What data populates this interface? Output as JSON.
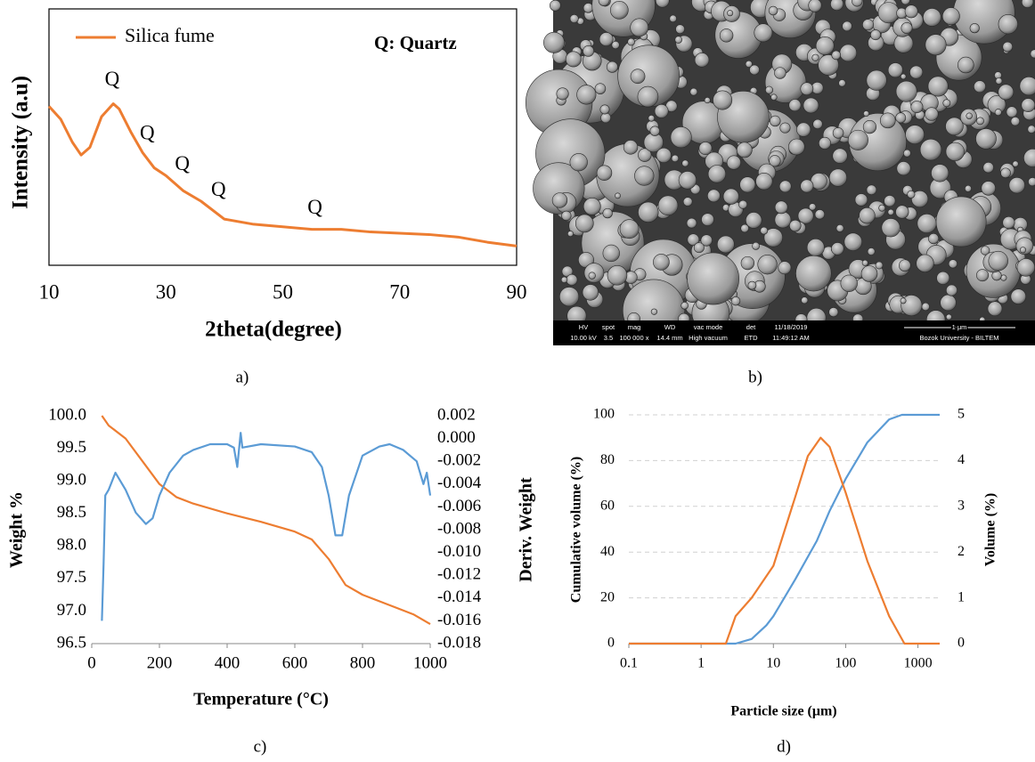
{
  "chart_data": [
    {
      "type": "line",
      "caption": "a)",
      "xlabel": "2theta(degree)",
      "ylabel": "Intensity (a.u)",
      "xlim": [
        10,
        90
      ],
      "xticks": [
        10,
        30,
        50,
        70,
        90
      ],
      "ylim": [
        0,
        100
      ],
      "grid": false,
      "legend": "top-left",
      "note": "Q: Quartz",
      "peak_labels": [
        "Q",
        "Q",
        "Q",
        "Q",
        "Q"
      ],
      "series": [
        {
          "name": "Silica fume",
          "color": "#ed7d31",
          "x": [
            10,
            12,
            14,
            15.5,
            17,
            19,
            21,
            22,
            24,
            26,
            28,
            30,
            33,
            36,
            40,
            45,
            50,
            55,
            60,
            65,
            70,
            75,
            80,
            85,
            90
          ],
          "values": [
            62,
            57,
            48,
            43,
            46,
            58,
            63,
            61,
            52,
            44,
            38,
            35,
            29,
            25,
            18,
            16,
            15,
            14,
            14,
            13,
            12.5,
            12,
            11,
            9,
            7.5
          ]
        }
      ]
    },
    {
      "type": "line",
      "caption": "c)",
      "xlabel": "Temperature (°C)",
      "ylabel": "Weight %",
      "y2label": "Deriv. Weight",
      "xlim": [
        0,
        1000
      ],
      "xticks": [
        0,
        200,
        400,
        600,
        800,
        1000
      ],
      "ylim": [
        96.5,
        100
      ],
      "yticks": [
        96.5,
        {
          "value": 97,
          "label": "97.0"
        },
        97.5,
        {
          "value": 98,
          "label": "98.0"
        },
        98.5,
        {
          "value": 99,
          "label": "99.0"
        },
        99.5,
        {
          "value": 100,
          "label": "100.0"
        }
      ],
      "y2lim": [
        -0.018,
        0.002
      ],
      "y2ticks": [
        -0.018,
        -0.016,
        -0.014,
        -0.012,
        {
          "value": -0.01,
          "label": "-0.010"
        },
        -0.008,
        -0.006,
        -0.004,
        -0.002,
        {
          "value": 0,
          "label": "0.000"
        },
        0.002
      ],
      "grid": false,
      "series": [
        {
          "color": "#ed7d31",
          "x": [
            30,
            50,
            100,
            150,
            200,
            250,
            300,
            400,
            500,
            600,
            650,
            700,
            750,
            800,
            900,
            950,
            1000
          ],
          "values": [
            100,
            99.85,
            99.65,
            99.3,
            98.95,
            98.75,
            98.65,
            98.5,
            98.37,
            98.22,
            98.1,
            97.8,
            97.4,
            97.25,
            97.05,
            96.95,
            96.8
          ]
        },
        {
          "color": "#5b9bd5",
          "axis": "y2",
          "x": [
            30,
            35,
            40,
            50,
            70,
            80,
            100,
            130,
            160,
            180,
            200,
            230,
            270,
            300,
            350,
            400,
            420,
            430,
            440,
            445,
            500,
            600,
            650,
            680,
            700,
            720,
            740,
            760,
            800,
            850,
            880,
            920,
            960,
            980,
            990,
            1000
          ],
          "values": [
            -0.016,
            -0.011,
            -0.005,
            -0.0045,
            -0.003,
            -0.0035,
            -0.0045,
            -0.0065,
            -0.0075,
            -0.007,
            -0.005,
            -0.003,
            -0.0015,
            -0.001,
            -0.0005,
            -0.0005,
            -0.0008,
            -0.0025,
            0.0005,
            -0.0008,
            -0.0005,
            -0.0007,
            -0.0012,
            -0.0025,
            -0.005,
            -0.0085,
            -0.0085,
            -0.005,
            -0.0015,
            -0.0007,
            -0.0005,
            -0.001,
            -0.002,
            -0.004,
            -0.003,
            -0.005
          ]
        }
      ]
    },
    {
      "type": "line",
      "caption": "d)",
      "xlabel": "Particle size (μm)",
      "ylabel": "Cumulative volume (%)",
      "y2label": "Volume (%)",
      "xscale": "log",
      "xlim": [
        0.1,
        2000
      ],
      "xticks": [
        0.1,
        1,
        10,
        100,
        1000
      ],
      "ylim": [
        0,
        100
      ],
      "yticks": [
        0,
        20,
        40,
        60,
        80,
        100
      ],
      "y2lim": [
        0,
        5
      ],
      "y2ticks": [
        0,
        1,
        2,
        3,
        4,
        5
      ],
      "grid": true,
      "series": [
        {
          "color": "#5b9bd5",
          "x": [
            0.1,
            1,
            3,
            5,
            8,
            10,
            20,
            40,
            60,
            100,
            200,
            400,
            600,
            2000
          ],
          "values": [
            0,
            0,
            0,
            2,
            8,
            12,
            28,
            45,
            58,
            72,
            88,
            98,
            100,
            100
          ]
        },
        {
          "color": "#ed7d31",
          "axis": "y2",
          "x": [
            0.1,
            2.2,
            3,
            5,
            10,
            20,
            30,
            45,
            60,
            100,
            200,
            400,
            650,
            2000
          ],
          "values": [
            0,
            0,
            0.6,
            1,
            1.7,
            3.2,
            4.1,
            4.5,
            4.3,
            3.3,
            1.8,
            0.6,
            0,
            0
          ]
        }
      ]
    }
  ],
  "image": {
    "caption": "b)",
    "scale_bar": "1 μm",
    "institution": "Bozok University - BILTEM",
    "info": [
      {
        "label": "HV",
        "value": "10.00 kV"
      },
      {
        "label": "spot",
        "value": "3.5"
      },
      {
        "label": "mag",
        "value": "100 000 x"
      },
      {
        "label": "WD",
        "value": "14.4 mm"
      },
      {
        "label": "vac mode",
        "value": "High vacuum"
      },
      {
        "label": "det",
        "value": "ETD"
      },
      {
        "label": "11/18/2019",
        "value": "11:49:12 AM"
      }
    ]
  }
}
